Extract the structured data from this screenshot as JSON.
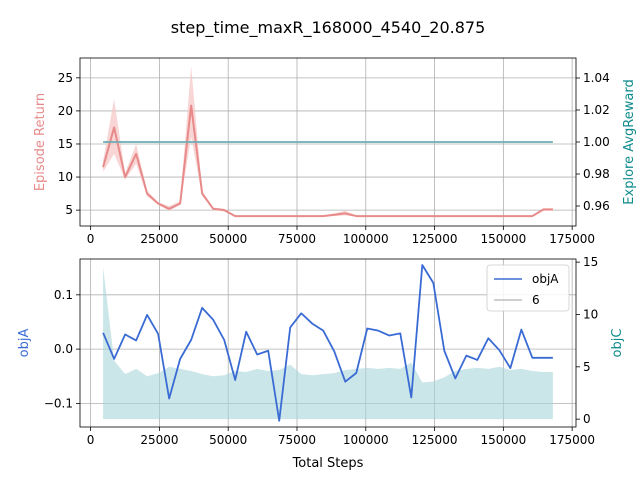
{
  "figure": {
    "title": "step_time_maxR_168000_4540_20.875"
  },
  "chart_data": [
    {
      "type": "line",
      "panel": "top",
      "xlabel": "",
      "ylabel": "Episode Return",
      "ylabel_right": "Explore AvgReward",
      "xlim": [
        -3860,
        176400
      ],
      "ylim": [
        2.6,
        28.0
      ],
      "ylim_right": [
        0.9475,
        1.0525
      ],
      "grid": true,
      "x_ticks": [
        0,
        25000,
        50000,
        75000,
        100000,
        125000,
        150000,
        175000
      ],
      "x_tick_labels": [
        "0",
        "25000",
        "50000",
        "75000",
        "100000",
        "125000",
        "150000",
        "175000"
      ],
      "y_ticks": [
        5,
        10,
        15,
        20,
        25
      ],
      "y_tick_labels": [
        "5",
        "10",
        "15",
        "20",
        "25"
      ],
      "y_ticks_right": [
        0.96,
        0.98,
        1.0,
        1.02,
        1.04
      ],
      "y_tick_labels_right": [
        "0.96",
        "0.98",
        "1.00",
        "1.02",
        "1.04"
      ],
      "colors": {
        "return": "#e88a8a",
        "return_band": "#f5c8c8",
        "explore": "#6aaeb4",
        "axis_label_left": "#e88a8a",
        "axis_label_right": "#0f8b8d"
      },
      "series": [
        {
          "axis": "left",
          "x": [
            4540,
            8540,
            12540,
            16540,
            20540,
            24540,
            28540,
            32540,
            36540,
            40540,
            44540,
            48540,
            52540,
            56540,
            84540,
            88540,
            92540,
            96540,
            156540,
            160540,
            164540,
            168000
          ],
          "values": [
            11.5,
            17.5,
            10.0,
            13.5,
            7.5,
            6.0,
            5.2,
            6.0,
            20.8,
            7.5,
            5.2,
            5.0,
            4.1,
            4.1,
            4.1,
            4.3,
            4.5,
            4.1,
            4.1,
            4.1,
            5.1,
            5.1
          ],
          "band_upper": [
            12.5,
            21.8,
            10.6,
            15.0,
            7.9,
            6.2,
            5.6,
            6.4,
            26.8,
            7.9,
            5.4,
            5.2,
            4.2,
            4.2,
            4.2,
            4.5,
            4.9,
            4.2,
            4.2,
            4.2,
            5.3,
            5.3
          ],
          "band_lower": [
            10.8,
            13.5,
            9.6,
            12.0,
            7.1,
            5.8,
            4.9,
            5.8,
            16.0,
            7.2,
            5.0,
            4.8,
            4.0,
            4.0,
            4.0,
            4.1,
            4.2,
            4.0,
            4.0,
            4.0,
            4.9,
            4.9
          ]
        },
        {
          "axis": "right",
          "x": [
            4540,
            168000
          ],
          "values": [
            1.0,
            1.0
          ]
        }
      ]
    },
    {
      "type": "line",
      "panel": "bottom",
      "xlabel": "Total Steps",
      "ylabel": "objA",
      "ylabel_right": "objC",
      "xlim": [
        -3860,
        176400
      ],
      "ylim": [
        -0.1435,
        0.166
      ],
      "ylim_right": [
        -0.75,
        15.3
      ],
      "grid": true,
      "x_ticks": [
        0,
        25000,
        50000,
        75000,
        100000,
        125000,
        150000,
        175000
      ],
      "x_tick_labels": [
        "0",
        "25000",
        "50000",
        "75000",
        "100000",
        "125000",
        "150000",
        "175000"
      ],
      "y_ticks": [
        -0.1,
        0.0,
        0.1
      ],
      "y_tick_labels": [
        "−0.1",
        "0.0",
        "0.1"
      ],
      "y_ticks_right": [
        0,
        5,
        10,
        15
      ],
      "y_tick_labels_right": [
        "0",
        "5",
        "10",
        "15"
      ],
      "legend": {
        "position": "top-right",
        "entries": [
          "objA",
          "6"
        ]
      },
      "colors": {
        "objA": "#3a6bd4",
        "objC_fill": "#a9d6d8",
        "legend_gray": "#bdbdbd",
        "axis_label_left": "#3a6bd4",
        "axis_label_right": "#0f8b8d"
      },
      "series": [
        {
          "name": "objA",
          "axis": "left",
          "x": [
            4540,
            8540,
            12540,
            16540,
            20540,
            24540,
            28540,
            32540,
            36540,
            40540,
            44540,
            48540,
            52540,
            56540,
            60540,
            64540,
            68540,
            72540,
            76540,
            80540,
            84540,
            88540,
            92540,
            96540,
            100540,
            104540,
            108540,
            112540,
            116540,
            120540,
            124540,
            128540,
            132540,
            136540,
            140540,
            144540,
            148540,
            152540,
            156540,
            160540,
            164540,
            168000
          ],
          "values": [
            0.03,
            -0.018,
            0.027,
            0.016,
            0.063,
            0.028,
            -0.091,
            -0.018,
            0.017,
            0.076,
            0.054,
            0.017,
            -0.057,
            0.032,
            -0.01,
            -0.003,
            -0.132,
            0.04,
            0.066,
            0.047,
            0.034,
            -0.004,
            -0.06,
            -0.044,
            0.038,
            0.034,
            0.025,
            0.029,
            -0.089,
            0.155,
            0.122,
            -0.003,
            -0.054,
            -0.012,
            -0.02,
            0.02,
            -0.002,
            -0.035,
            0.036,
            -0.016,
            -0.016,
            -0.016
          ]
        },
        {
          "name": "objC",
          "axis": "right",
          "fill": true,
          "x": [
            4540,
            8540,
            12540,
            16540,
            20540,
            24540,
            28540,
            32540,
            36540,
            40540,
            44540,
            48540,
            52540,
            56540,
            60540,
            64540,
            68540,
            72540,
            76540,
            80540,
            84540,
            88540,
            92540,
            96540,
            100540,
            104540,
            108540,
            112540,
            116540,
            120540,
            124540,
            128540,
            132540,
            136540,
            140540,
            144540,
            148540,
            152540,
            156540,
            160540,
            164540,
            168000
          ],
          "values": [
            14.5,
            5.6,
            4.3,
            4.8,
            4.1,
            4.4,
            5.0,
            4.8,
            4.6,
            4.3,
            4.1,
            4.2,
            4.6,
            4.5,
            4.8,
            4.6,
            4.7,
            5.2,
            4.3,
            4.2,
            4.3,
            4.4,
            4.7,
            4.8,
            4.9,
            4.8,
            4.9,
            4.8,
            5.4,
            3.5,
            3.6,
            4.0,
            4.6,
            4.8,
            4.9,
            4.8,
            5.0,
            4.7,
            4.8,
            4.6,
            4.5,
            4.5
          ]
        }
      ]
    }
  ]
}
